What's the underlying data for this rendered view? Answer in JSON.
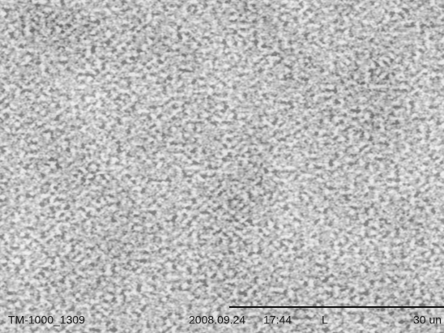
{
  "footer": {
    "instrument_id": "TM-1000_1309",
    "date": "2008.09.24",
    "time": "17:44",
    "mode": "L",
    "scale": "30 un"
  }
}
